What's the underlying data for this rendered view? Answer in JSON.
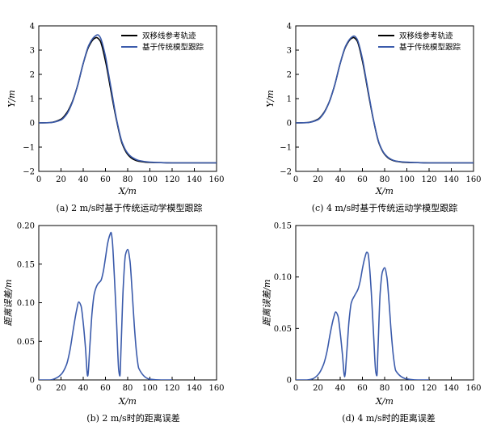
{
  "figure": {
    "colors": {
      "reference": "#000000",
      "tracking": "#3b5bab",
      "error": "#3b5bab"
    }
  },
  "chart_data": [
    {
      "id": "a",
      "type": "line",
      "caption": "(a) 2 m/s时基于传统运动学模型跟踪",
      "xlabel": "X/m",
      "ylabel": "Y/m",
      "xlim": [
        0,
        160
      ],
      "ylim": [
        -2,
        4
      ],
      "xticks": [
        0,
        20,
        40,
        60,
        80,
        100,
        120,
        140,
        160
      ],
      "yticks": [
        -2,
        -1,
        0,
        1,
        2,
        3,
        4
      ],
      "legend_position": "top-right",
      "series": [
        {
          "name": "双移线参考轨迹",
          "color": "#000000",
          "x": [
            0,
            10,
            20,
            25,
            30,
            35,
            40,
            45,
            50,
            52,
            55,
            60,
            62.5,
            65,
            70,
            75,
            80,
            85,
            90,
            100,
            110,
            120,
            130,
            140,
            150,
            160
          ],
          "y": [
            0,
            0.01,
            0.15,
            0.4,
            0.85,
            1.55,
            2.45,
            3.15,
            3.48,
            3.52,
            3.4,
            2.55,
            1.95,
            1.3,
            0.1,
            -0.85,
            -1.3,
            -1.5,
            -1.58,
            -1.63,
            -1.64,
            -1.65,
            -1.65,
            -1.65,
            -1.65,
            -1.65
          ]
        },
        {
          "name": "基于传统模型跟踪",
          "color": "#3b5bab",
          "x": [
            0,
            10,
            20,
            25,
            30,
            35,
            40,
            45,
            50,
            53,
            55,
            60,
            62.5,
            65,
            70,
            75,
            80,
            85,
            90,
            100,
            110,
            120,
            130,
            140,
            150,
            160
          ],
          "y": [
            0,
            0.01,
            0.12,
            0.35,
            0.82,
            1.55,
            2.45,
            3.2,
            3.55,
            3.63,
            3.55,
            2.75,
            2.1,
            1.45,
            0.15,
            -0.8,
            -1.25,
            -1.45,
            -1.55,
            -1.62,
            -1.64,
            -1.65,
            -1.65,
            -1.65,
            -1.65,
            -1.65
          ]
        }
      ]
    },
    {
      "id": "c",
      "type": "line",
      "caption": "(c) 4 m/s时基于传统运动学模型跟踪",
      "xlabel": "X/m",
      "ylabel": "Y/m",
      "xlim": [
        0,
        160
      ],
      "ylim": [
        -2,
        4
      ],
      "xticks": [
        0,
        20,
        40,
        60,
        80,
        100,
        120,
        140,
        160
      ],
      "yticks": [
        -2,
        -1,
        0,
        1,
        2,
        3,
        4
      ],
      "legend_position": "top-right",
      "series": [
        {
          "name": "双移线参考轨迹",
          "color": "#000000",
          "x": [
            0,
            10,
            20,
            25,
            30,
            35,
            40,
            45,
            50,
            52,
            55,
            60,
            62.5,
            65,
            70,
            75,
            80,
            85,
            90,
            100,
            110,
            120,
            130,
            140,
            150,
            160
          ],
          "y": [
            0,
            0.01,
            0.15,
            0.4,
            0.85,
            1.55,
            2.45,
            3.15,
            3.48,
            3.52,
            3.4,
            2.55,
            1.95,
            1.3,
            0.1,
            -0.85,
            -1.3,
            -1.5,
            -1.58,
            -1.63,
            -1.64,
            -1.65,
            -1.65,
            -1.65,
            -1.65,
            -1.65
          ]
        },
        {
          "name": "基于传统模型跟踪",
          "color": "#3b5bab",
          "x": [
            0,
            10,
            20,
            25,
            30,
            35,
            40,
            45,
            50,
            52.5,
            55,
            60,
            62.5,
            65,
            70,
            75,
            80,
            85,
            90,
            100,
            110,
            120,
            130,
            140,
            150,
            160
          ],
          "y": [
            0,
            0.01,
            0.13,
            0.38,
            0.84,
            1.55,
            2.45,
            3.18,
            3.52,
            3.58,
            3.47,
            2.65,
            2.02,
            1.37,
            0.12,
            -0.83,
            -1.28,
            -1.48,
            -1.57,
            -1.62,
            -1.64,
            -1.65,
            -1.65,
            -1.65,
            -1.65,
            -1.65
          ]
        }
      ]
    },
    {
      "id": "b",
      "type": "line",
      "caption": "(b) 2 m/s时的距离误差",
      "xlabel": "X/m",
      "ylabel": "距离误差/m",
      "xlim": [
        0,
        160
      ],
      "ylim": [
        0,
        0.2
      ],
      "xticks": [
        0,
        20,
        40,
        60,
        80,
        100,
        120,
        140,
        160
      ],
      "yticks": [
        0,
        0.05,
        0.1,
        0.15,
        0.2
      ],
      "ytick_labels": [
        "0",
        "0.05",
        "0.10",
        "0.15",
        "0.20"
      ],
      "series": [
        {
          "name": "",
          "color": "#3b5bab",
          "x": [
            0,
            10,
            15,
            20,
            25,
            28,
            31,
            34,
            36,
            38,
            40,
            42,
            44,
            46,
            48,
            50,
            53,
            56,
            58,
            60,
            62,
            64,
            65,
            66,
            68,
            70,
            72,
            73,
            74,
            76,
            78,
            80,
            82,
            84,
            86,
            88,
            90,
            100,
            110,
            120
          ],
          "y": [
            0,
            0,
            0.002,
            0.007,
            0.02,
            0.038,
            0.065,
            0.09,
            0.101,
            0.096,
            0.074,
            0.042,
            0.005,
            0.045,
            0.088,
            0.112,
            0.124,
            0.129,
            0.14,
            0.158,
            0.177,
            0.188,
            0.191,
            0.183,
            0.135,
            0.075,
            0.012,
            0.005,
            0.04,
            0.12,
            0.162,
            0.169,
            0.155,
            0.115,
            0.07,
            0.035,
            0.015,
            0.001,
            0,
            0
          ]
        }
      ]
    },
    {
      "id": "d",
      "type": "line",
      "caption": "(d) 4 m/s时的距离误差",
      "xlabel": "X/m",
      "ylabel": "距离误差/m",
      "xlim": [
        0,
        160
      ],
      "ylim": [
        0,
        0.15
      ],
      "xticks": [
        0,
        20,
        40,
        60,
        80,
        100,
        120,
        140,
        160
      ],
      "yticks": [
        0,
        0.05,
        0.1,
        0.15
      ],
      "ytick_labels": [
        "0",
        "0.05",
        "0.10",
        "0.15"
      ],
      "series": [
        {
          "name": "",
          "color": "#3b5bab",
          "x": [
            0,
            10,
            15,
            20,
            25,
            28,
            31,
            34,
            36,
            38,
            40,
            42,
            44,
            46,
            48,
            50,
            53,
            56,
            58,
            60,
            62,
            64,
            65,
            66,
            68,
            70,
            72,
            73,
            74,
            76,
            78,
            80,
            82,
            84,
            86,
            88,
            90,
            100,
            110,
            120
          ],
          "y": [
            0,
            0,
            0.001,
            0.005,
            0.015,
            0.027,
            0.045,
            0.06,
            0.066,
            0.062,
            0.046,
            0.025,
            0.003,
            0.028,
            0.058,
            0.075,
            0.082,
            0.088,
            0.096,
            0.108,
            0.118,
            0.124,
            0.123,
            0.115,
            0.085,
            0.045,
            0.008,
            0.004,
            0.03,
            0.085,
            0.105,
            0.109,
            0.1,
            0.075,
            0.045,
            0.022,
            0.009,
            0.001,
            0,
            0
          ]
        }
      ]
    }
  ]
}
